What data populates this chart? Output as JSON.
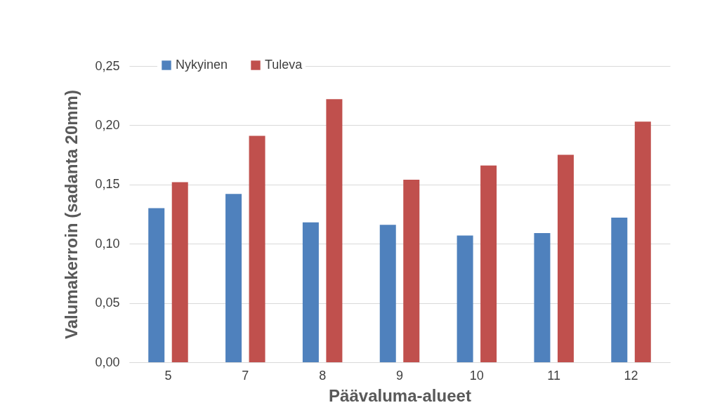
{
  "chart_data": {
    "type": "bar",
    "xlabel": "Päävaluma-alueet",
    "ylabel": "Valumakerroin (sadanta 20mm)",
    "categories": [
      "5",
      "7",
      "8",
      "9",
      "10",
      "11",
      "12"
    ],
    "series": [
      {
        "name": "Nykyinen",
        "color": "#4f81bd",
        "values": [
          0.13,
          0.142,
          0.118,
          0.116,
          0.107,
          0.109,
          0.122
        ]
      },
      {
        "name": "Tuleva",
        "color": "#c0504d",
        "values": [
          0.152,
          0.191,
          0.222,
          0.154,
          0.166,
          0.175,
          0.203
        ]
      }
    ],
    "ylim": [
      0,
      0.25
    ],
    "yticks": [
      {
        "value": 0,
        "label": "0,00"
      },
      {
        "value": 0.05,
        "label": "0,05"
      },
      {
        "value": 0.1,
        "label": "0,10"
      },
      {
        "value": 0.15,
        "label": "0,15"
      },
      {
        "value": 0.2,
        "label": "0,20"
      },
      {
        "value": 0.25,
        "label": "0,25"
      }
    ],
    "grid": "y",
    "legend": "top left"
  }
}
